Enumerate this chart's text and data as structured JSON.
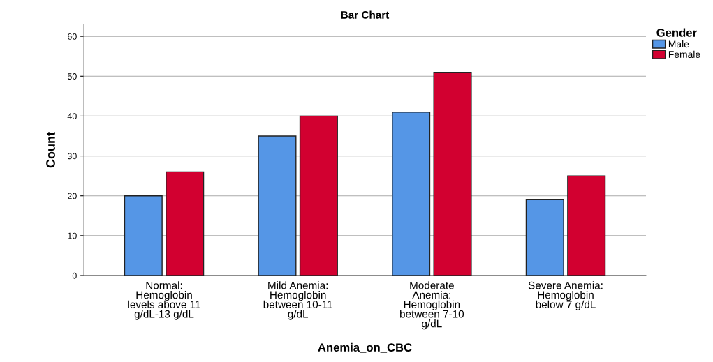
{
  "chart_data": {
    "type": "bar",
    "title": "Bar Chart",
    "xlabel": "Anemia_on_CBC",
    "ylabel": "Count",
    "legend_title": "Gender",
    "categories": [
      "Normal:\nHemoglobin\nlevels above 11\ng/dL-13 g/dL",
      "Mild Anemia:\nHemoglobin\nbetween 10-11\ng/dL",
      "Moderate\nAnemia:\nHemoglobin\nbetween 7-10\ng/dL",
      "Severe Anemia:\nHemoglobin\nbelow 7 g/dL"
    ],
    "series": [
      {
        "name": "Male",
        "color": "#5596e6",
        "values": [
          20,
          35,
          41,
          19
        ]
      },
      {
        "name": "Female",
        "color": "#d20030",
        "values": [
          26,
          40,
          51,
          25
        ]
      }
    ],
    "ylim": [
      0,
      63
    ],
    "yticks": [
      0,
      10,
      20,
      30,
      40,
      50,
      60
    ],
    "grid": "y",
    "legend": "top right"
  }
}
